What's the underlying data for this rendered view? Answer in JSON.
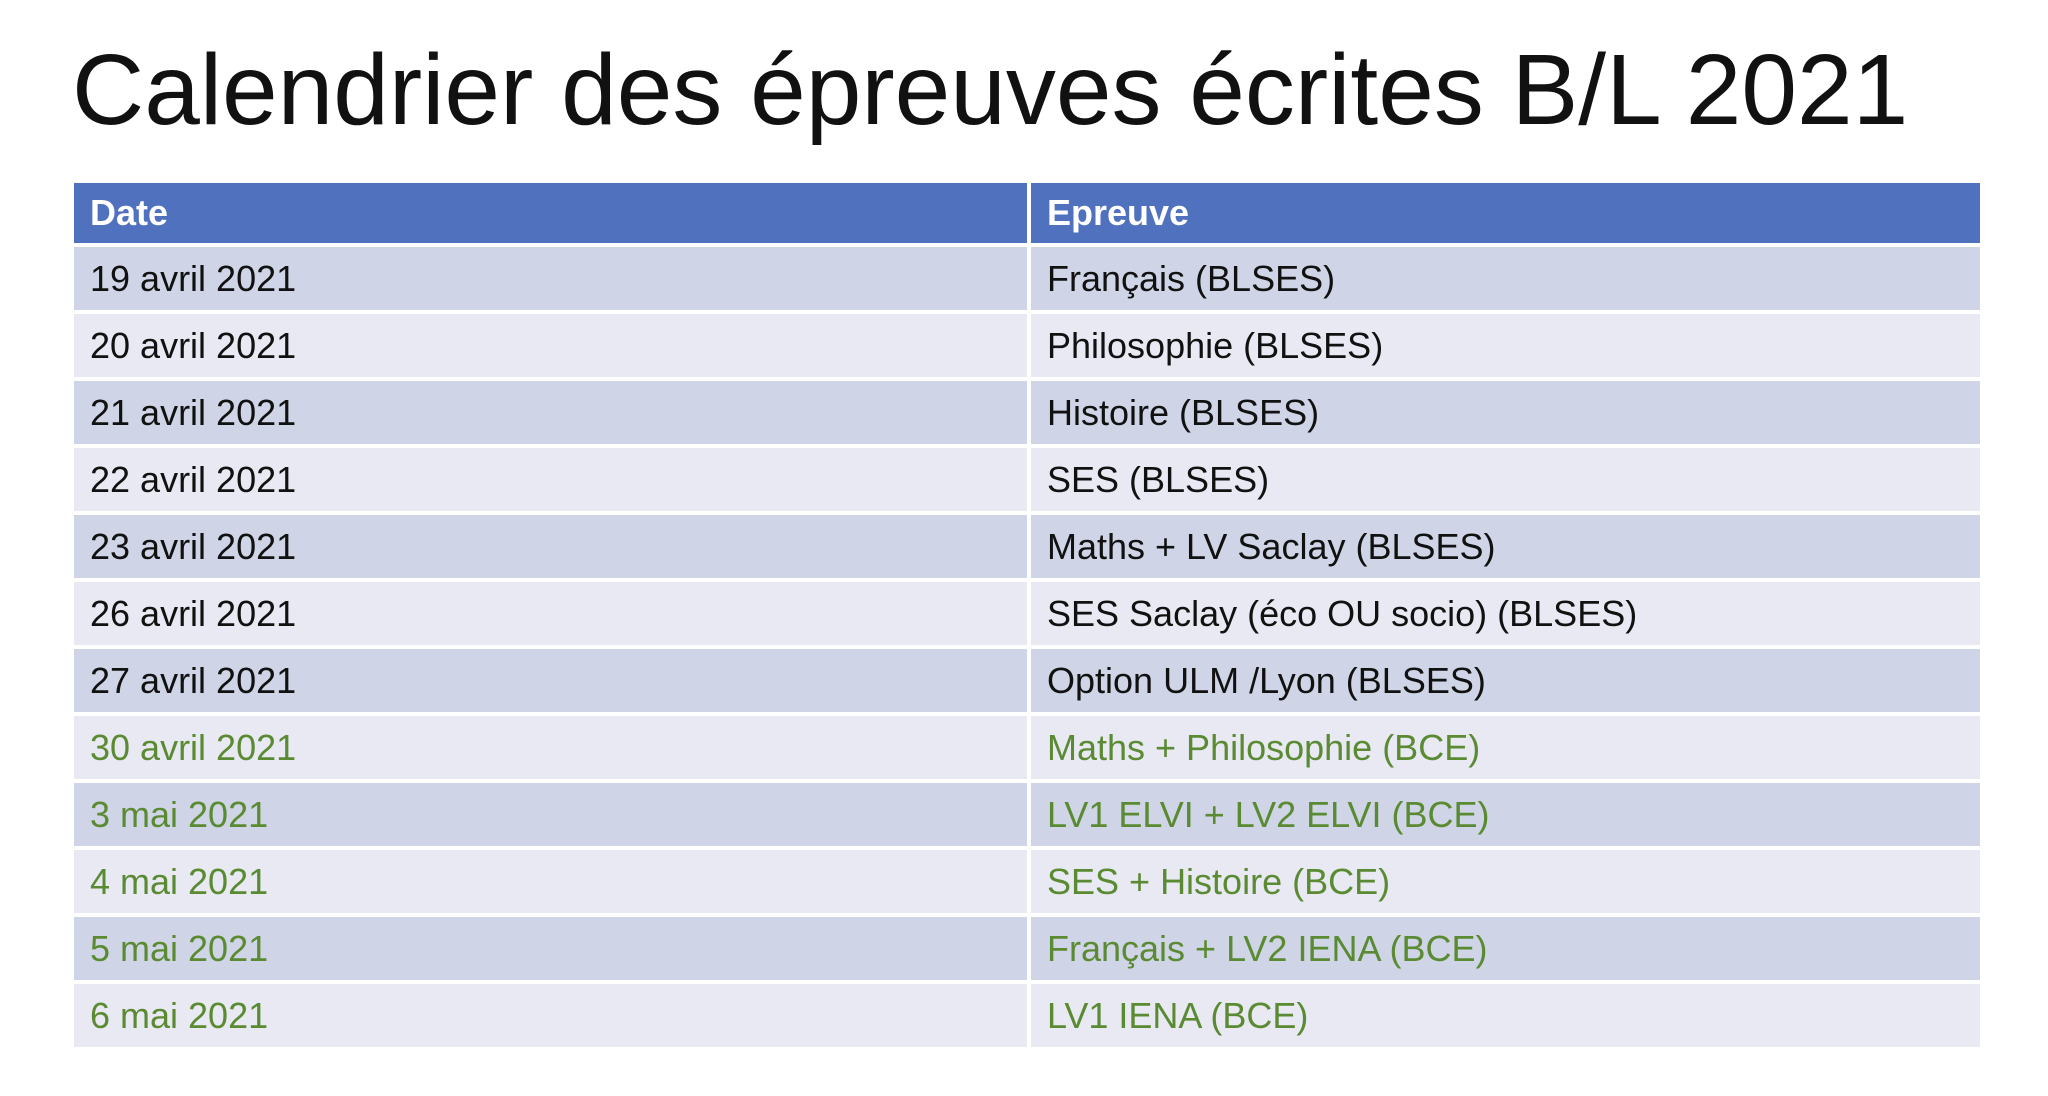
{
  "title": "Calendrier des épreuves écrites B/L 2021",
  "table": {
    "headers": [
      "Date",
      "Epreuve"
    ],
    "rows": [
      {
        "date": "19 avril 2021",
        "epreuve": "Français (BLSES)",
        "group": "black"
      },
      {
        "date": "20 avril 2021",
        "epreuve": "Philosophie (BLSES)",
        "group": "black"
      },
      {
        "date": "21 avril 2021",
        "epreuve": "Histoire (BLSES)",
        "group": "black"
      },
      {
        "date": "22 avril 2021",
        "epreuve": "SES (BLSES)",
        "group": "black"
      },
      {
        "date": "23 avril 2021",
        "epreuve": "Maths  + LV Saclay (BLSES)",
        "group": "black"
      },
      {
        "date": "26 avril 2021",
        "epreuve": "SES Saclay (éco OU socio) (BLSES)",
        "group": "black"
      },
      {
        "date": "27 avril 2021",
        "epreuve": "Option ULM /Lyon (BLSES)",
        "group": "black"
      },
      {
        "date": "30 avril 2021",
        "epreuve": "Maths + Philosophie (BCE)",
        "group": "green"
      },
      {
        "date": "3 mai 2021",
        "epreuve": "LV1 ELVI + LV2 ELVI (BCE)",
        "group": "green"
      },
      {
        "date": "4 mai 2021",
        "epreuve": "SES + Histoire (BCE)",
        "group": "green"
      },
      {
        "date": "5 mai 2021",
        "epreuve": "Français + LV2 IENA (BCE)",
        "group": "green"
      },
      {
        "date": "6 mai 2021",
        "epreuve": "LV1 IENA (BCE)",
        "group": "green"
      }
    ]
  },
  "colors": {
    "header_bg": "#4f71be",
    "row_odd_bg": "#cfd5e6",
    "row_even_bg": "#e8e9f2",
    "text_black": "#111111",
    "text_green": "#5a8a32"
  }
}
